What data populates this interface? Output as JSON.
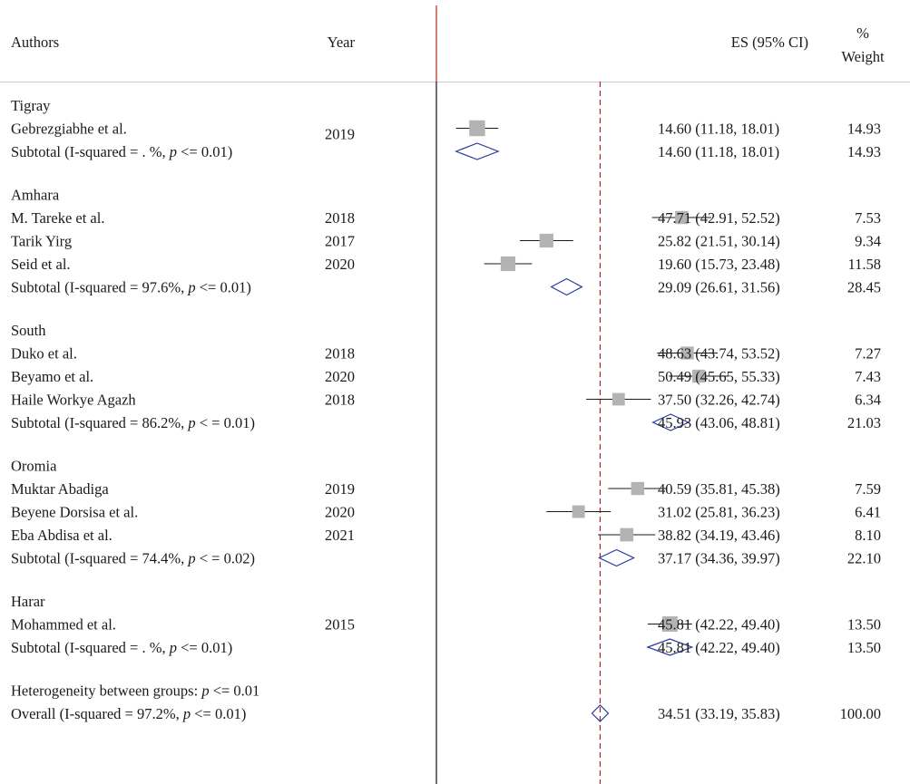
{
  "chart_data": {
    "type": "forest",
    "headers": {
      "authors": "Authors",
      "year": "Year",
      "es": "ES (95% CI)",
      "weight_line1": "%",
      "weight_line2": "Weight"
    },
    "x_range": [
      8,
      70
    ],
    "reference_line": 34.51,
    "rows": [
      {
        "kind": "group",
        "label": "Tigray"
      },
      {
        "kind": "study",
        "label": "Gebrezgiabhe et al.",
        "year": "2019",
        "es": 14.6,
        "lo": 11.18,
        "hi": 18.01,
        "ci_text": "14.60 (11.18, 18.01)",
        "weight": 14.93,
        "weight_text": "14.93"
      },
      {
        "kind": "subtotal",
        "label_pre": "Subtotal (I-squared = . %, ",
        "p_sym": "p",
        "label_post": " <= 0.01)",
        "es": 14.6,
        "lo": 11.18,
        "hi": 18.01,
        "ci_text": "14.60 (11.18, 18.01)",
        "weight_text": "14.93"
      },
      {
        "kind": "gap"
      },
      {
        "kind": "group",
        "label": "Amhara"
      },
      {
        "kind": "study",
        "label": "M. Tareke et al.",
        "year": "2018",
        "es": 47.71,
        "lo": 42.91,
        "hi": 52.52,
        "ci_text": "47.71 (42.91, 52.52)",
        "weight": 7.53,
        "weight_text": "7.53"
      },
      {
        "kind": "study",
        "label": "Tarik Yirg",
        "year": "2017",
        "es": 25.82,
        "lo": 21.51,
        "hi": 30.14,
        "ci_text": "25.82 (21.51, 30.14)",
        "weight": 9.34,
        "weight_text": "9.34"
      },
      {
        "kind": "study",
        "label": "Seid et al.",
        "year": "2020",
        "es": 19.6,
        "lo": 15.73,
        "hi": 23.48,
        "ci_text": "19.60 (15.73, 23.48)",
        "weight": 11.58,
        "weight_text": "11.58"
      },
      {
        "kind": "subtotal",
        "label_pre": "Subtotal (I-squared = 97.6%, ",
        "p_sym": "p",
        "label_post": " <= 0.01)",
        "es": 29.09,
        "lo": 26.61,
        "hi": 31.56,
        "ci_text": "29.09 (26.61, 31.56)",
        "weight_text": "28.45"
      },
      {
        "kind": "gap"
      },
      {
        "kind": "group",
        "label": "South"
      },
      {
        "kind": "study",
        "label": "Duko et al.",
        "year": "2018",
        "es": 48.63,
        "lo": 43.74,
        "hi": 53.52,
        "ci_text": "48.63 (43.74, 53.52)",
        "weight": 7.27,
        "weight_text": "7.27"
      },
      {
        "kind": "study",
        "label": "Beyamo et al.",
        "year": "2020",
        "es": 50.49,
        "lo": 45.65,
        "hi": 55.33,
        "ci_text": "50.49 (45.65, 55.33)",
        "weight": 7.43,
        "weight_text": "7.43"
      },
      {
        "kind": "study",
        "label": "Haile Workye Agazh",
        "year": "2018",
        "es": 37.5,
        "lo": 32.26,
        "hi": 42.74,
        "ci_text": "37.50 (32.26, 42.74)",
        "weight": 6.34,
        "weight_text": "6.34"
      },
      {
        "kind": "subtotal",
        "label_pre": "Subtotal (I-squared = 86.2%, ",
        "p_sym": "p",
        "label_post": " < = 0.01)",
        "es": 45.93,
        "lo": 43.06,
        "hi": 48.81,
        "ci_text": "45.93 (43.06, 48.81)",
        "weight_text": "21.03"
      },
      {
        "kind": "gap"
      },
      {
        "kind": "group",
        "label": "Oromia"
      },
      {
        "kind": "study",
        "label": "Muktar Abadiga",
        "year": "2019",
        "es": 40.59,
        "lo": 35.81,
        "hi": 45.38,
        "ci_text": "40.59 (35.81, 45.38)",
        "weight": 7.59,
        "weight_text": "7.59"
      },
      {
        "kind": "study",
        "label": "Beyene Dorsisa et al.",
        "year": "2020",
        "es": 31.02,
        "lo": 25.81,
        "hi": 36.23,
        "ci_text": "31.02 (25.81, 36.23)",
        "weight": 6.41,
        "weight_text": "6.41"
      },
      {
        "kind": "study",
        "label": "Eba Abdisa et al.",
        "year": "2021",
        "es": 38.82,
        "lo": 34.19,
        "hi": 43.46,
        "ci_text": "38.82 (34.19, 43.46)",
        "weight": 8.1,
        "weight_text": "8.10"
      },
      {
        "kind": "subtotal",
        "label_pre": "Subtotal (I-squared = 74.4%, ",
        "p_sym": "p",
        "label_post": " < = 0.02)",
        "es": 37.17,
        "lo": 34.36,
        "hi": 39.97,
        "ci_text": "37.17 (34.36, 39.97)",
        "weight_text": "22.10"
      },
      {
        "kind": "gap"
      },
      {
        "kind": "group",
        "label": "Harar"
      },
      {
        "kind": "study",
        "label": "Mohammed et al.",
        "year": "2015",
        "es": 45.81,
        "lo": 42.22,
        "hi": 49.4,
        "ci_text": "45.81 (42.22, 49.40)",
        "weight": 13.5,
        "weight_text": "13.50"
      },
      {
        "kind": "subtotal",
        "label_pre": "Subtotal (I-squared = . %, ",
        "p_sym": "p",
        "label_post": " <= 0.01)",
        "es": 45.81,
        "lo": 42.22,
        "hi": 49.4,
        "ci_text": "45.81 (42.22, 49.40)",
        "weight_text": "13.50"
      },
      {
        "kind": "gap"
      },
      {
        "kind": "note",
        "label_pre": "Heterogeneity between groups: ",
        "p_sym": "p",
        "label_post": " <= 0.01"
      },
      {
        "kind": "overall",
        "label_pre": "Overall (I-squared = 97.2%, ",
        "p_sym": "p",
        "label_post": " <= 0.01)",
        "es": 34.51,
        "lo": 33.19,
        "hi": 35.83,
        "ci_text": "34.51 (33.19, 35.83)",
        "weight_text": "100.00"
      }
    ],
    "colors": {
      "text": "#1a1a1a",
      "square": "#b3b3b3",
      "diamond": "#2a3a9c",
      "reference_line": "#a52a2a",
      "header_divider": "#c0392b",
      "axis_line": "#222222",
      "rule": "#cccccc"
    }
  }
}
